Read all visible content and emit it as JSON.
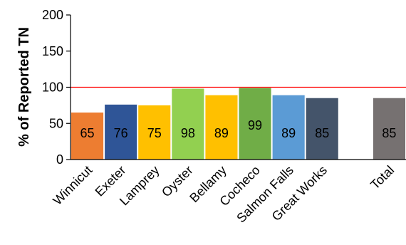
{
  "chart_data": {
    "type": "bar",
    "title": "",
    "xlabel": "",
    "ylabel": "% of Reported TN",
    "ylim": [
      0,
      200
    ],
    "yticks": [
      0,
      50,
      100,
      150,
      200
    ],
    "categories": [
      "Winnicut",
      "Exeter",
      "Lamprey",
      "Oyster",
      "Bellamy",
      "Cocheco",
      "Salmon Falls",
      "Great Works",
      "",
      "Total"
    ],
    "values": [
      65,
      76,
      75,
      98,
      89,
      99,
      89,
      85,
      null,
      85
    ],
    "data_labels": [
      "65",
      "76",
      "75",
      "98",
      "89",
      "99",
      "89",
      "85",
      "",
      "85"
    ],
    "colors": [
      "#ED7D31",
      "#2F5597",
      "#FFC000",
      "#92D050",
      "#FFC000",
      "#70AD47",
      "#5B9BD5",
      "#44546A",
      "",
      "#767171"
    ],
    "reference_line": {
      "value": 100,
      "color": "#FF0000"
    },
    "grid": false,
    "legend": "none"
  }
}
